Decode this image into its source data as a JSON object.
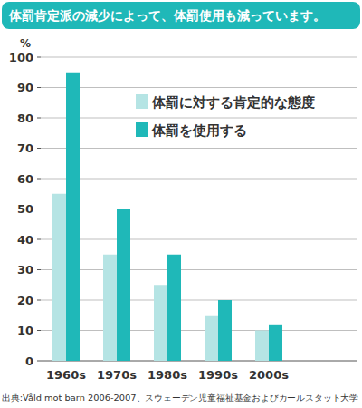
{
  "chart_data": {
    "type": "bar",
    "title": "体罰肯定派の減少によって、体罰使用も減っています。",
    "ylabel": "%",
    "categories": [
      "1960s",
      "1970s",
      "1980s",
      "1990s",
      "2000s"
    ],
    "series": [
      {
        "name": "体罰に対する肯定的な態度",
        "color": "#b5e4e4",
        "values": [
          55,
          35,
          25,
          15,
          10
        ]
      },
      {
        "name": "体罰を使用する",
        "color": "#1fb8b8",
        "values": [
          95,
          50,
          35,
          20,
          12
        ]
      }
    ],
    "ylim": [
      0,
      100
    ],
    "yticks": [
      0,
      10,
      20,
      30,
      40,
      50,
      60,
      70,
      80,
      90,
      100
    ],
    "grid": true,
    "legend": "top",
    "source": "出典:Våld mot barn 2006-2007、スウェーデン児童福祉基金およびカールスタット大学"
  }
}
